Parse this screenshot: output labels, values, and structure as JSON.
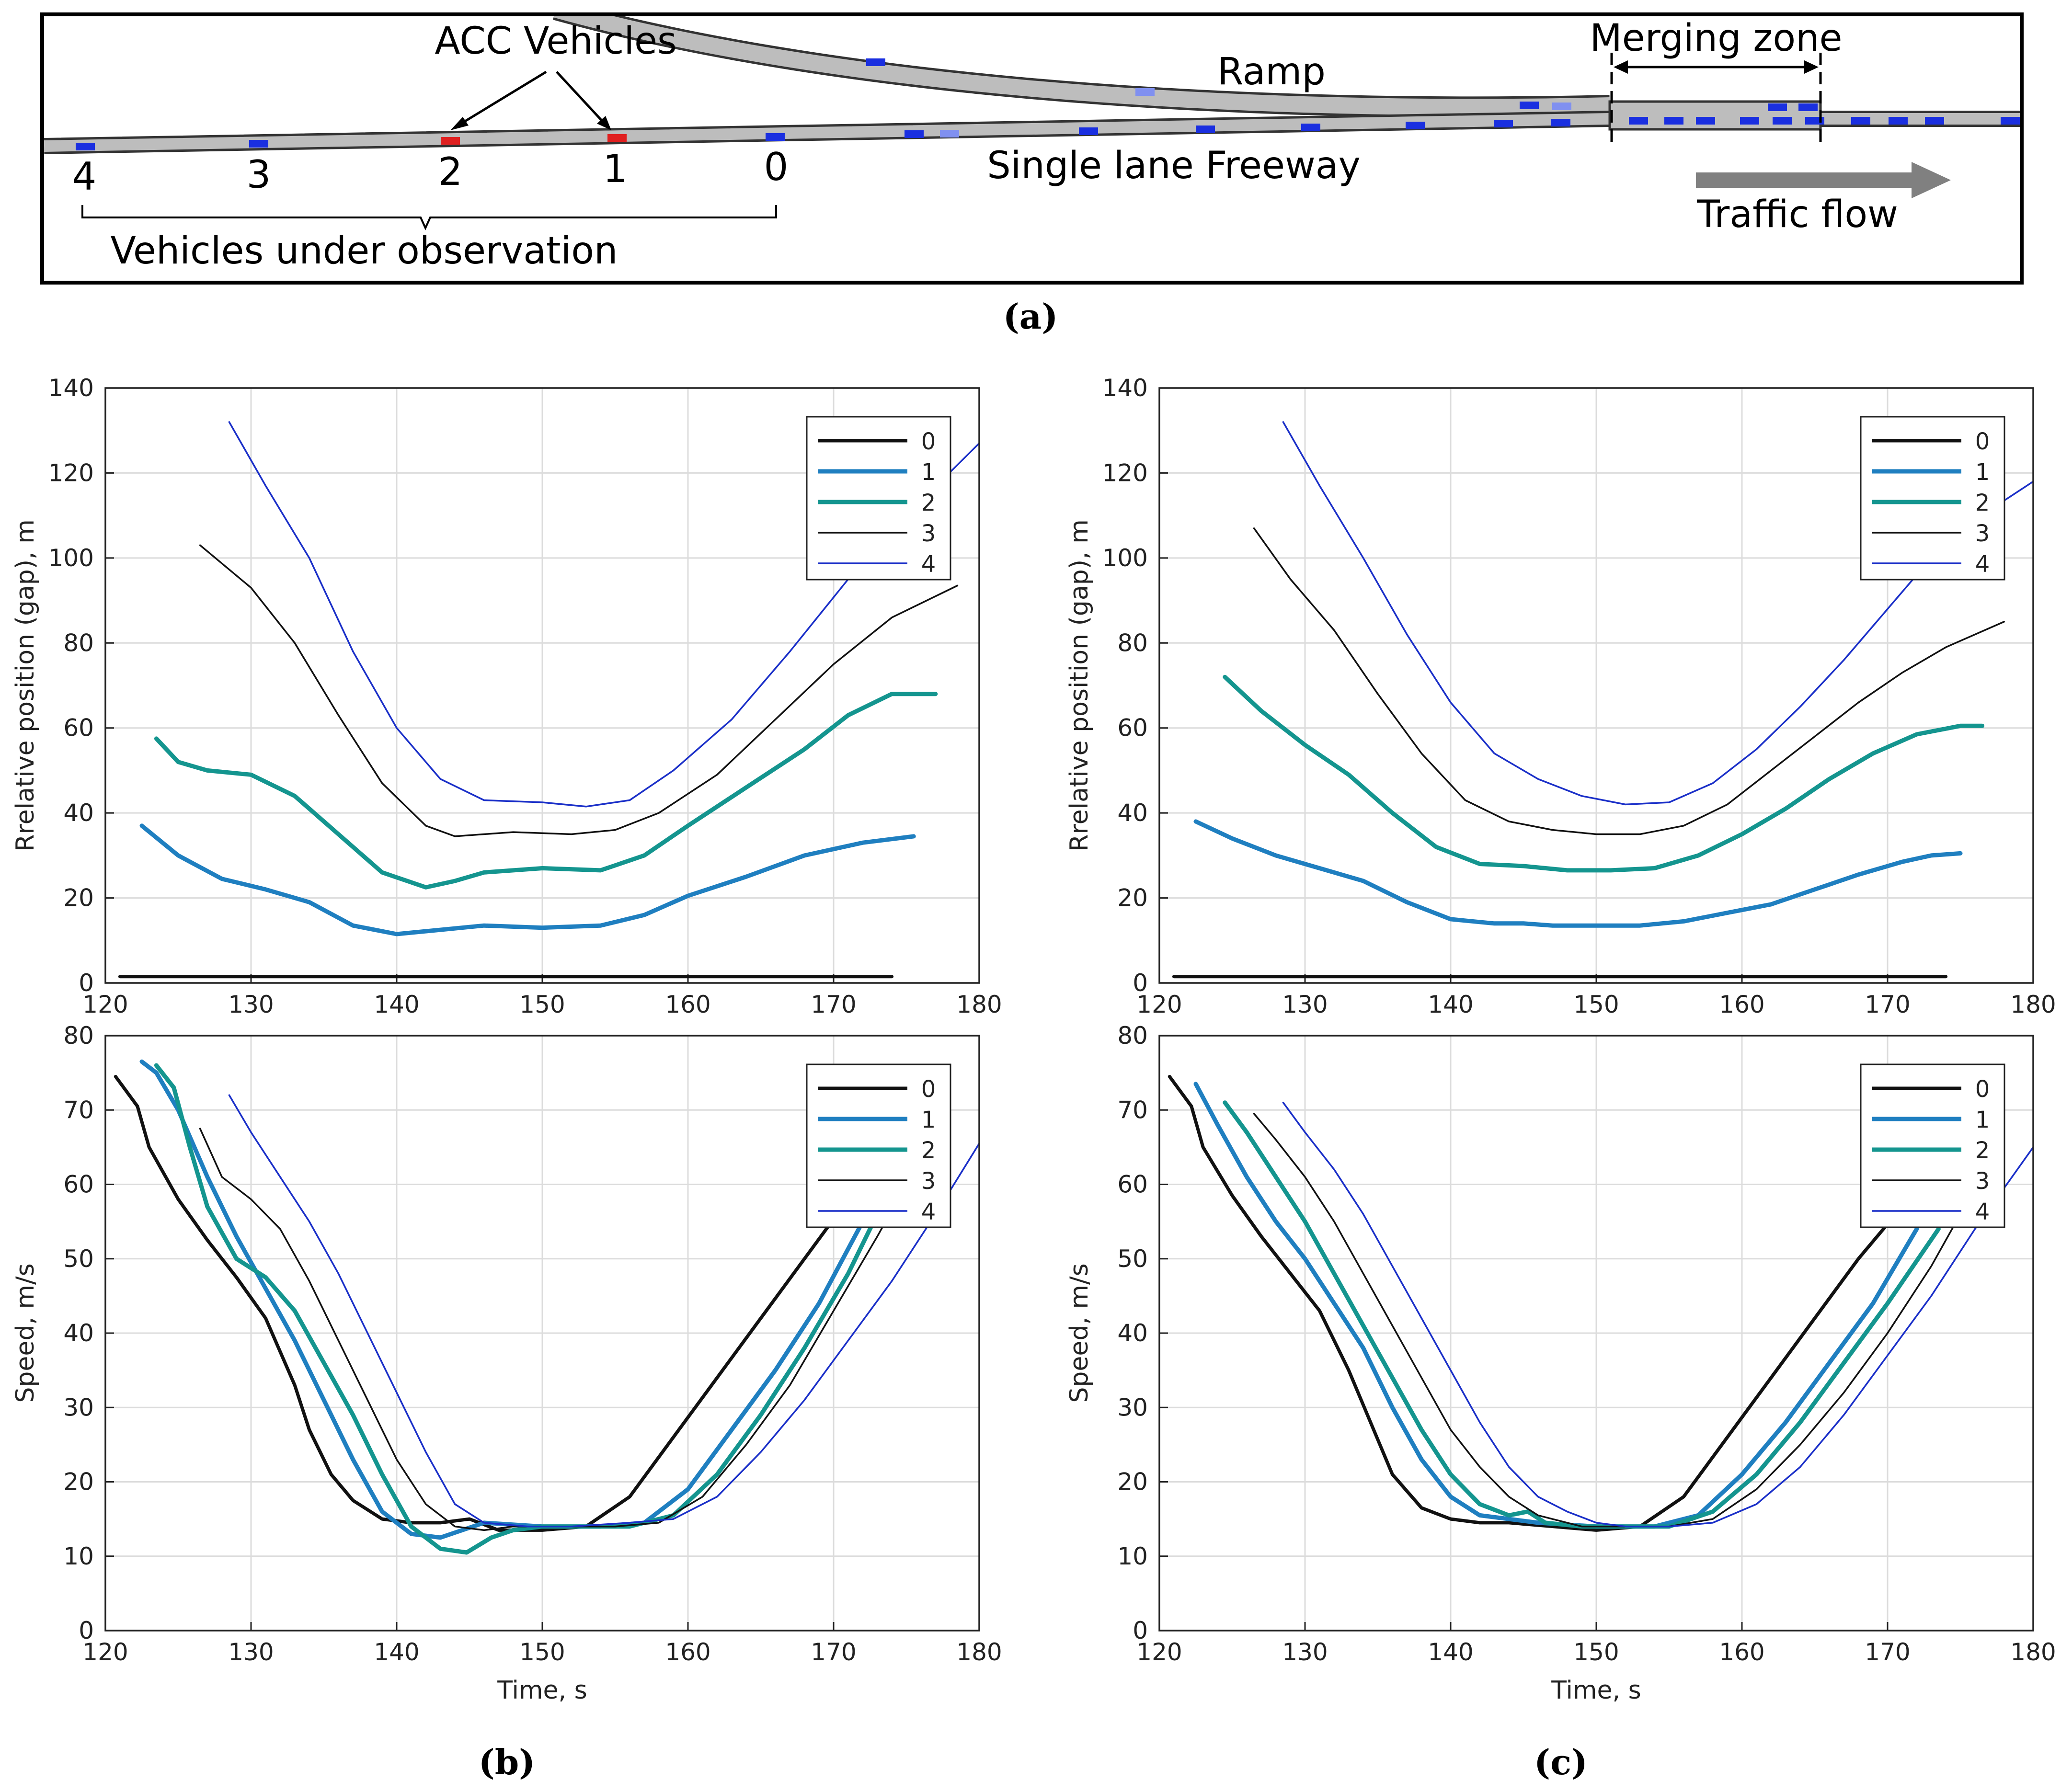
{
  "panel_a": {
    "label": "(a)",
    "acc_label": "ACC Vehicles",
    "ramp_label": "Ramp",
    "merging_label": "Merging zone",
    "freeway_label": "Single lane Freeway",
    "flow_label": "Traffic flow",
    "observation_label": "Vehicles under observation",
    "vehicle_numbers": [
      "4",
      "3",
      "2",
      "1",
      "0"
    ]
  },
  "panel_b": {
    "label": "(b)"
  },
  "panel_c": {
    "label": "(c)"
  },
  "colors": {
    "s0": "#111111",
    "s1": "#1f7fc0",
    "s2": "#14958f",
    "s3": "#111111",
    "s4": "#1a2fc8"
  },
  "chart_data": [
    {
      "id": "b-gap",
      "type": "line",
      "xlabel": "",
      "ylabel": "Rrelative position (gap), m",
      "xlim": [
        120,
        180
      ],
      "ylim": [
        0,
        140
      ],
      "xticks": [
        120,
        130,
        140,
        150,
        160,
        170,
        180
      ],
      "yticks": [
        0,
        20,
        40,
        60,
        80,
        100,
        120,
        140
      ],
      "grid": true,
      "legend": "top-right",
      "series": [
        {
          "name": "0",
          "x": [
            121,
            174
          ],
          "y": [
            1.5,
            1.5
          ]
        },
        {
          "name": "1",
          "x": [
            122.5,
            125,
            128,
            131,
            134,
            137,
            140,
            143,
            146,
            150,
            154,
            157,
            160,
            164,
            168,
            172,
            175.5
          ],
          "y": [
            37,
            30,
            24.5,
            22,
            19,
            13.5,
            11.5,
            12.5,
            13.5,
            13,
            13.5,
            16,
            20.5,
            25,
            30,
            33,
            34.5
          ]
        },
        {
          "name": "2",
          "x": [
            123.5,
            125,
            127,
            130,
            133,
            136,
            139,
            142,
            144,
            146,
            150,
            154,
            157,
            160,
            164,
            168,
            171,
            174,
            177
          ],
          "y": [
            57.5,
            52,
            50,
            49,
            44,
            35,
            26,
            22.5,
            24,
            26,
            27,
            26.5,
            30,
            37,
            46,
            55,
            63,
            68,
            68
          ]
        },
        {
          "name": "3",
          "x": [
            126.5,
            130,
            133,
            136,
            139,
            142,
            144,
            148,
            152,
            155,
            158,
            162,
            166,
            170,
            174,
            178.5
          ],
          "y": [
            103,
            93,
            80,
            63,
            47,
            37,
            34.5,
            35.5,
            35,
            36,
            40,
            49,
            62,
            75,
            86,
            93.5
          ]
        },
        {
          "name": "4",
          "x": [
            128.5,
            131,
            134,
            137,
            140,
            143,
            146,
            150,
            153,
            156,
            159,
            163,
            167,
            171,
            175,
            180
          ],
          "y": [
            132,
            117,
            100,
            78,
            60,
            48,
            43,
            42.5,
            41.5,
            43,
            50,
            62,
            78,
            95,
            110,
            127
          ]
        }
      ]
    },
    {
      "id": "b-speed",
      "type": "line",
      "xlabel": "Time, s",
      "ylabel": "Speed, m/s",
      "xlim": [
        120,
        180
      ],
      "ylim": [
        0,
        80
      ],
      "xticks": [
        120,
        130,
        140,
        150,
        160,
        170,
        180
      ],
      "yticks": [
        0,
        10,
        20,
        30,
        40,
        50,
        60,
        70,
        80
      ],
      "grid": true,
      "legend": "top-right",
      "series": [
        {
          "name": "0",
          "x": [
            120.7,
            122.2,
            123,
            125,
            127,
            129,
            131,
            133,
            134,
            135.5,
            137,
            139,
            141,
            143,
            145,
            147,
            150,
            153,
            156,
            159,
            162,
            165,
            168,
            171
          ],
          "y": [
            74.5,
            70.5,
            65,
            58,
            52.5,
            47.5,
            42,
            33,
            27,
            21,
            17.5,
            15,
            14.5,
            14.5,
            15,
            13.5,
            13.5,
            14,
            18,
            26,
            34,
            42,
            50,
            58
          ]
        },
        {
          "name": "1",
          "x": [
            122.5,
            123.5,
            125,
            127,
            129,
            131,
            133,
            135,
            137,
            139,
            141,
            143,
            144.5,
            146,
            150,
            154,
            157,
            160,
            163,
            166,
            169,
            172
          ],
          "y": [
            76.5,
            75,
            70,
            61,
            53,
            46,
            39,
            31,
            23,
            16,
            13,
            12.5,
            13.5,
            14.5,
            14,
            14,
            14.5,
            19,
            27,
            35,
            44,
            55
          ]
        },
        {
          "name": "2",
          "x": [
            123.5,
            124.7,
            125.8,
            127,
            129,
            131,
            133,
            135,
            137,
            139,
            141,
            143,
            144.8,
            146.5,
            148,
            150,
            153,
            156,
            159,
            162,
            165,
            168,
            171,
            173
          ],
          "y": [
            76,
            73,
            65,
            57,
            50,
            47.5,
            43,
            36,
            29,
            21,
            14,
            11,
            10.5,
            12.5,
            13.5,
            14,
            14,
            14,
            15.5,
            21,
            29,
            38,
            48,
            56
          ]
        },
        {
          "name": "3",
          "x": [
            126.5,
            128,
            130,
            132,
            134,
            136,
            138,
            140,
            142,
            144,
            146,
            148,
            151,
            155,
            158,
            161,
            164,
            167,
            170,
            173,
            175
          ],
          "y": [
            67.5,
            61,
            58,
            54,
            47,
            39,
            31,
            23,
            17,
            14,
            13.5,
            14,
            14,
            14,
            14.5,
            18,
            25,
            33,
            43,
            53,
            60
          ]
        },
        {
          "name": "4",
          "x": [
            128.5,
            130,
            132,
            134,
            136,
            138,
            140,
            142,
            144,
            146,
            149,
            152,
            156,
            159,
            162,
            165,
            168,
            171,
            174,
            177,
            180
          ],
          "y": [
            72,
            67,
            61,
            55,
            48,
            40,
            32,
            24,
            17,
            14.5,
            14,
            14,
            14.5,
            15,
            18,
            24,
            31,
            39,
            47,
            56,
            65.5
          ]
        }
      ]
    },
    {
      "id": "c-gap",
      "type": "line",
      "xlabel": "",
      "ylabel": "Rrelative position (gap), m",
      "xlim": [
        120,
        180
      ],
      "ylim": [
        0,
        140
      ],
      "xticks": [
        120,
        130,
        140,
        150,
        160,
        170,
        180
      ],
      "yticks": [
        0,
        20,
        40,
        60,
        80,
        100,
        120,
        140
      ],
      "grid": true,
      "legend": "top-right",
      "series": [
        {
          "name": "0",
          "x": [
            121,
            174
          ],
          "y": [
            1.5,
            1.5
          ]
        },
        {
          "name": "1",
          "x": [
            122.5,
            125,
            128,
            131,
            134,
            137,
            140,
            143,
            145,
            147,
            150,
            153,
            156,
            159,
            162,
            165,
            168,
            171,
            173,
            175
          ],
          "y": [
            38,
            34,
            30,
            27,
            24,
            19,
            15,
            14,
            14,
            13.5,
            13.5,
            13.5,
            14.5,
            16.5,
            18.5,
            22,
            25.5,
            28.5,
            30,
            30.5
          ]
        },
        {
          "name": "2",
          "x": [
            124.5,
            127,
            130,
            133,
            136,
            139,
            142,
            145,
            148,
            151,
            154,
            157,
            160,
            163,
            166,
            169,
            172,
            175,
            176.5
          ],
          "y": [
            72,
            64,
            56,
            49,
            40,
            32,
            28,
            27.5,
            26.5,
            26.5,
            27,
            30,
            35,
            41,
            48,
            54,
            58.5,
            60.5,
            60.5
          ]
        },
        {
          "name": "3",
          "x": [
            126.5,
            129,
            132,
            135,
            138,
            141,
            144,
            147,
            150,
            153,
            156,
            159,
            162,
            165,
            168,
            171,
            174,
            178
          ],
          "y": [
            107,
            95,
            83,
            68,
            54,
            43,
            38,
            36,
            35,
            35,
            37,
            42,
            50,
            58,
            66,
            73,
            79,
            85
          ]
        },
        {
          "name": "4",
          "x": [
            128.5,
            131,
            134,
            137,
            140,
            143,
            146,
            149,
            152,
            155,
            158,
            161,
            164,
            167,
            170,
            173,
            176,
            180
          ],
          "y": [
            132,
            117,
            100,
            82,
            66,
            54,
            48,
            44,
            42,
            42.5,
            47,
            55,
            65,
            76,
            88,
            100,
            109,
            118
          ]
        }
      ]
    },
    {
      "id": "c-speed",
      "type": "line",
      "xlabel": "Time, s",
      "ylabel": "Speed, m/s",
      "xlim": [
        120,
        180
      ],
      "ylim": [
        0,
        80
      ],
      "xticks": [
        120,
        130,
        140,
        150,
        160,
        170,
        180
      ],
      "yticks": [
        0,
        10,
        20,
        30,
        40,
        50,
        60,
        70,
        80
      ],
      "grid": true,
      "legend": "top-right",
      "series": [
        {
          "name": "0",
          "x": [
            120.7,
            122.2,
            123,
            125,
            127,
            129,
            131,
            133,
            134.5,
            136,
            138,
            140,
            142,
            144,
            147,
            150,
            153,
            156,
            159,
            162,
            165,
            168,
            171
          ],
          "y": [
            74.5,
            70.5,
            65,
            58.5,
            53,
            48,
            43,
            35,
            28,
            21,
            16.5,
            15,
            14.5,
            14.5,
            14,
            13.5,
            14,
            18,
            26,
            34,
            42,
            50,
            57
          ]
        },
        {
          "name": "1",
          "x": [
            122.5,
            124,
            126,
            128,
            130,
            132,
            134,
            136,
            138,
            140,
            142,
            144,
            146,
            150,
            154,
            157,
            160,
            163,
            166,
            169,
            172
          ],
          "y": [
            73.5,
            68,
            61,
            55,
            50,
            44,
            38,
            30,
            23,
            18,
            15.5,
            15,
            14.5,
            14,
            14,
            15.5,
            21,
            28,
            36,
            44,
            54
          ]
        },
        {
          "name": "2",
          "x": [
            124.5,
            126,
            128,
            130,
            132,
            134,
            136,
            138,
            140,
            142,
            144,
            145.3,
            146.5,
            149,
            152,
            155,
            158,
            161,
            164,
            167,
            170,
            173.5
          ],
          "y": [
            71,
            67,
            61,
            55,
            48,
            41,
            34,
            27,
            21,
            17,
            15.5,
            16,
            14.5,
            14,
            14,
            14,
            16,
            21,
            28,
            36,
            44,
            54
          ]
        },
        {
          "name": "3",
          "x": [
            126.5,
            128,
            130,
            132,
            134,
            136,
            138,
            140,
            142,
            144,
            146,
            149,
            152,
            155,
            158,
            161,
            164,
            167,
            170,
            173,
            175
          ],
          "y": [
            69.5,
            66,
            61,
            55,
            48,
            41,
            34,
            27,
            22,
            18,
            15.5,
            14,
            14,
            14,
            15,
            19,
            25,
            32,
            40,
            49,
            56
          ]
        },
        {
          "name": "4",
          "x": [
            128.5,
            130,
            132,
            134,
            136,
            138,
            140,
            142,
            144,
            146,
            148,
            150,
            152,
            155,
            158,
            161,
            164,
            167,
            170,
            173,
            176,
            180
          ],
          "y": [
            71,
            67,
            62,
            56,
            49,
            42,
            35,
            28,
            22,
            18,
            16,
            14.5,
            14,
            14,
            14.5,
            17,
            22,
            29,
            37,
            45,
            54,
            65
          ]
        }
      ]
    }
  ]
}
